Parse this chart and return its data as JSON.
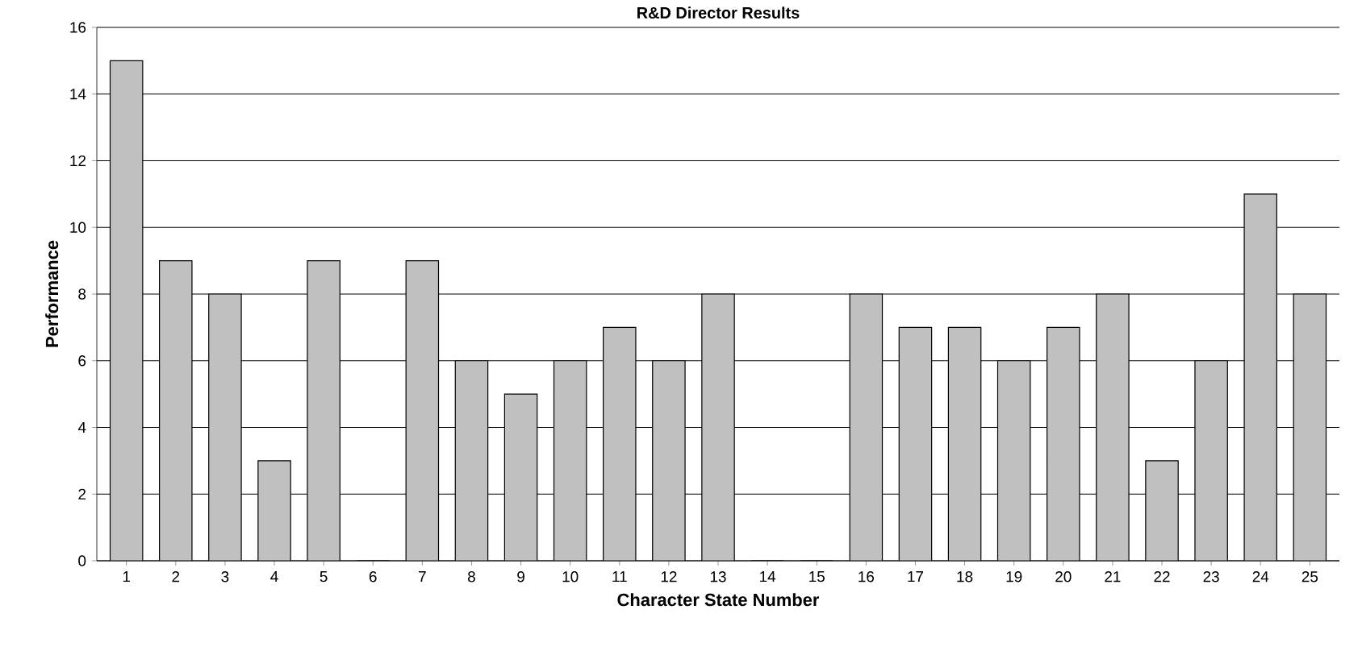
{
  "chart_data": {
    "type": "bar",
    "title": "R&D Director Results",
    "xlabel": "Character State Number",
    "ylabel": "Performance",
    "categories": [
      "1",
      "2",
      "3",
      "4",
      "5",
      "6",
      "7",
      "8",
      "9",
      "10",
      "11",
      "12",
      "13",
      "14",
      "15",
      "16",
      "17",
      "18",
      "19",
      "20",
      "21",
      "22",
      "23",
      "24",
      "25"
    ],
    "values": [
      15,
      9,
      8,
      3,
      9,
      0,
      9,
      6,
      5,
      6,
      7,
      6,
      8,
      0,
      0,
      8,
      7,
      7,
      6,
      7,
      8,
      3,
      6,
      11,
      8
    ],
    "color": "#c0c0c0",
    "ylim": [
      0,
      16
    ],
    "yticks": [
      0,
      2,
      4,
      6,
      8,
      10,
      12,
      14,
      16
    ],
    "grid": "y"
  }
}
